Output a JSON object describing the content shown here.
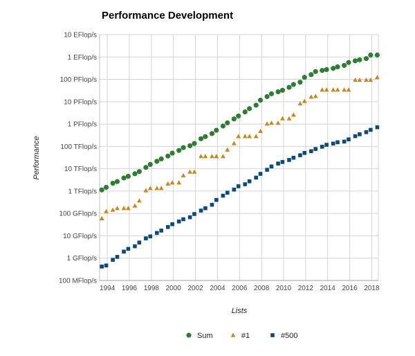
{
  "chart_data": {
    "type": "scatter",
    "title": "Performance Development",
    "xlabel": "Lists",
    "ylabel": "Performance",
    "xlim": [
      1993.3,
      2018.6
    ],
    "x_ticks": [
      1994,
      1996,
      1998,
      2000,
      2002,
      2004,
      2006,
      2008,
      2010,
      2012,
      2014,
      2016,
      2018
    ],
    "y_scale": "log10",
    "ylim_gflops": [
      0.1,
      10000000000
    ],
    "y_tick_labels": [
      "10 EFlop/s",
      "1 EFlop/s",
      "100 PFlop/s",
      "10 PFlop/s",
      "1 PFlop/s",
      "100 TFlop/s",
      "10 TFlop/s",
      "1 TFlop/s",
      "100 GFlop/s",
      "10 GFlop/s",
      "1 GFlop/s",
      "100 MFlop/s"
    ],
    "y_tick_values_gflops": [
      10000000000,
      1000000000,
      100000000,
      10000000,
      1000000,
      100000,
      10000,
      1000,
      100,
      10,
      1,
      0.1
    ],
    "grid": true,
    "legend_position": "bottom",
    "x": [
      1993.5,
      1993.9,
      1994.5,
      1994.9,
      1995.5,
      1995.9,
      1996.5,
      1996.9,
      1997.5,
      1997.9,
      1998.5,
      1998.9,
      1999.5,
      1999.9,
      2000.5,
      2000.9,
      2001.5,
      2001.9,
      2002.5,
      2002.9,
      2003.5,
      2003.9,
      2004.5,
      2004.9,
      2005.5,
      2005.9,
      2006.5,
      2006.9,
      2007.5,
      2007.9,
      2008.5,
      2008.9,
      2009.5,
      2009.9,
      2010.5,
      2010.9,
      2011.5,
      2011.9,
      2012.5,
      2012.9,
      2013.5,
      2013.9,
      2014.5,
      2014.9,
      2015.5,
      2015.9,
      2016.5,
      2016.9,
      2017.5,
      2017.9,
      2018.5
    ],
    "series": [
      {
        "name": "Sum",
        "color": "#2e7d32",
        "marker": "circle",
        "values": [
          1130,
          1480,
          2250,
          2680,
          3870,
          4600,
          5970,
          7500,
          11500,
          15600,
          21500,
          27500,
          37000,
          50000,
          66000,
          88000,
          107000,
          135000,
          220000,
          274000,
          375000,
          527000,
          813000,
          1130000,
          1690000,
          2300000,
          3500000,
          4900000,
          6980000,
          11700000,
          16900000,
          22600000,
          27600000,
          32400000,
          43900000,
          58900000,
          74200000,
          123000000,
          162000000,
          223000000,
          250000000,
          274000000,
          309000000,
          363000000,
          420000000,
          566000000,
          672000000,
          749000000,
          845000000,
          1220000000,
          1220000000
        ]
      },
      {
        "name": "#1",
        "color": "#c8881f",
        "marker": "triangle",
        "values": [
          59.7,
          124,
          143,
          170,
          170,
          170,
          220,
          368,
          1068,
          1338,
          1338,
          1338,
          2121,
          2380,
          2380,
          4938,
          7226,
          7226,
          35860,
          35860,
          35860,
          35860,
          35860,
          70720,
          136800,
          280600,
          280600,
          280600,
          280600,
          478200,
          1026000,
          1105000,
          1105000,
          1759000,
          1759000,
          2566000,
          8162000,
          10510000,
          16320000,
          17590000,
          33860000,
          33860000,
          33860000,
          33860000,
          33860000,
          33860000,
          93010000,
          93010000,
          93010000,
          93010000,
          122300000
        ]
      },
      {
        "name": "#500",
        "color": "#0d4a7a",
        "marker": "square",
        "values": [
          0.42,
          0.47,
          0.84,
          1.14,
          1.96,
          2.6,
          3.4,
          5.0,
          7.7,
          9.4,
          13.4,
          17.1,
          24.7,
          33.1,
          43.8,
          55.1,
          67.8,
          94.3,
          134,
          171,
          245,
          403,
          624,
          850,
          1166,
          1645,
          2026,
          2737,
          4005,
          5904,
          9000,
          12640,
          17090,
          20050,
          24670,
          31120,
          40190,
          50940,
          60820,
          76500,
          96620,
          117800,
          133700,
          153400,
          164600,
          206400,
          286100,
          348800,
          432200,
          548700,
          715600
        ]
      }
    ]
  }
}
